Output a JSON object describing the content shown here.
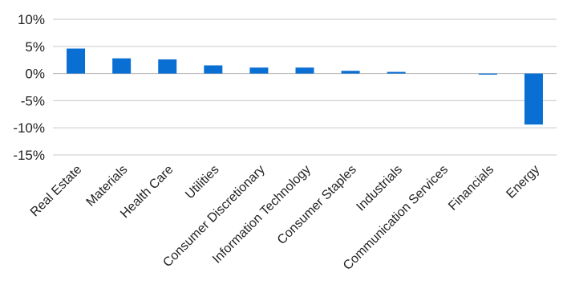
{
  "chart_data": {
    "type": "bar",
    "title": "",
    "xlabel": "",
    "ylabel": "",
    "categories": [
      "Real Estate",
      "Materials",
      "Health Care",
      "Utilities",
      "Consumer Discretionary",
      "Information Technology",
      "Consumer Staples",
      "Industrials",
      "Communication Services",
      "Financials",
      "Energy"
    ],
    "values": [
      4.6,
      2.8,
      2.6,
      1.5,
      1.1,
      1.1,
      0.5,
      0.3,
      0.0,
      -0.2,
      -9.4
    ],
    "ylim": [
      -15,
      10
    ],
    "yticks": [
      10,
      5,
      0,
      -5,
      -10,
      -15
    ],
    "ytick_labels": [
      "10%",
      "5%",
      "0%",
      "-5%",
      "-10%",
      "-15%"
    ],
    "grid": true,
    "bar_color": "#0a6fd2"
  }
}
